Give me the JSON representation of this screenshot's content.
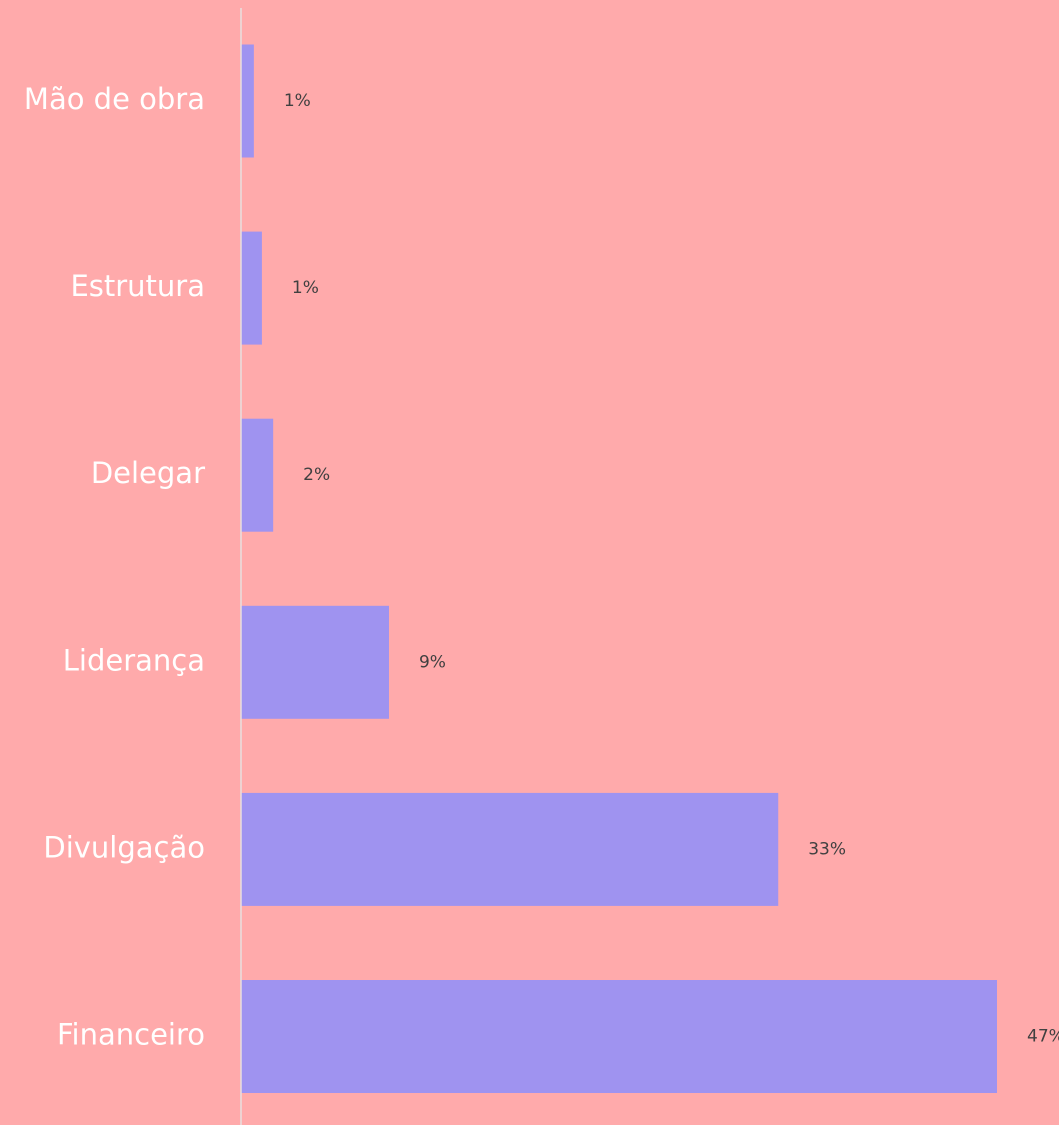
{
  "chart_data": {
    "type": "barh",
    "categories": [
      "Mão de obra",
      "Estrutura",
      "Delegar",
      "Liderança",
      "Divulgação",
      "Financeiro"
    ],
    "values": [
      0.8,
      1.3,
      2,
      9.2,
      33.4,
      47
    ],
    "value_labels": [
      "1%",
      "1%",
      "2%",
      "9%",
      "33%",
      "47%"
    ],
    "color": "#9f93f0",
    "xlim": [
      0,
      47
    ]
  }
}
